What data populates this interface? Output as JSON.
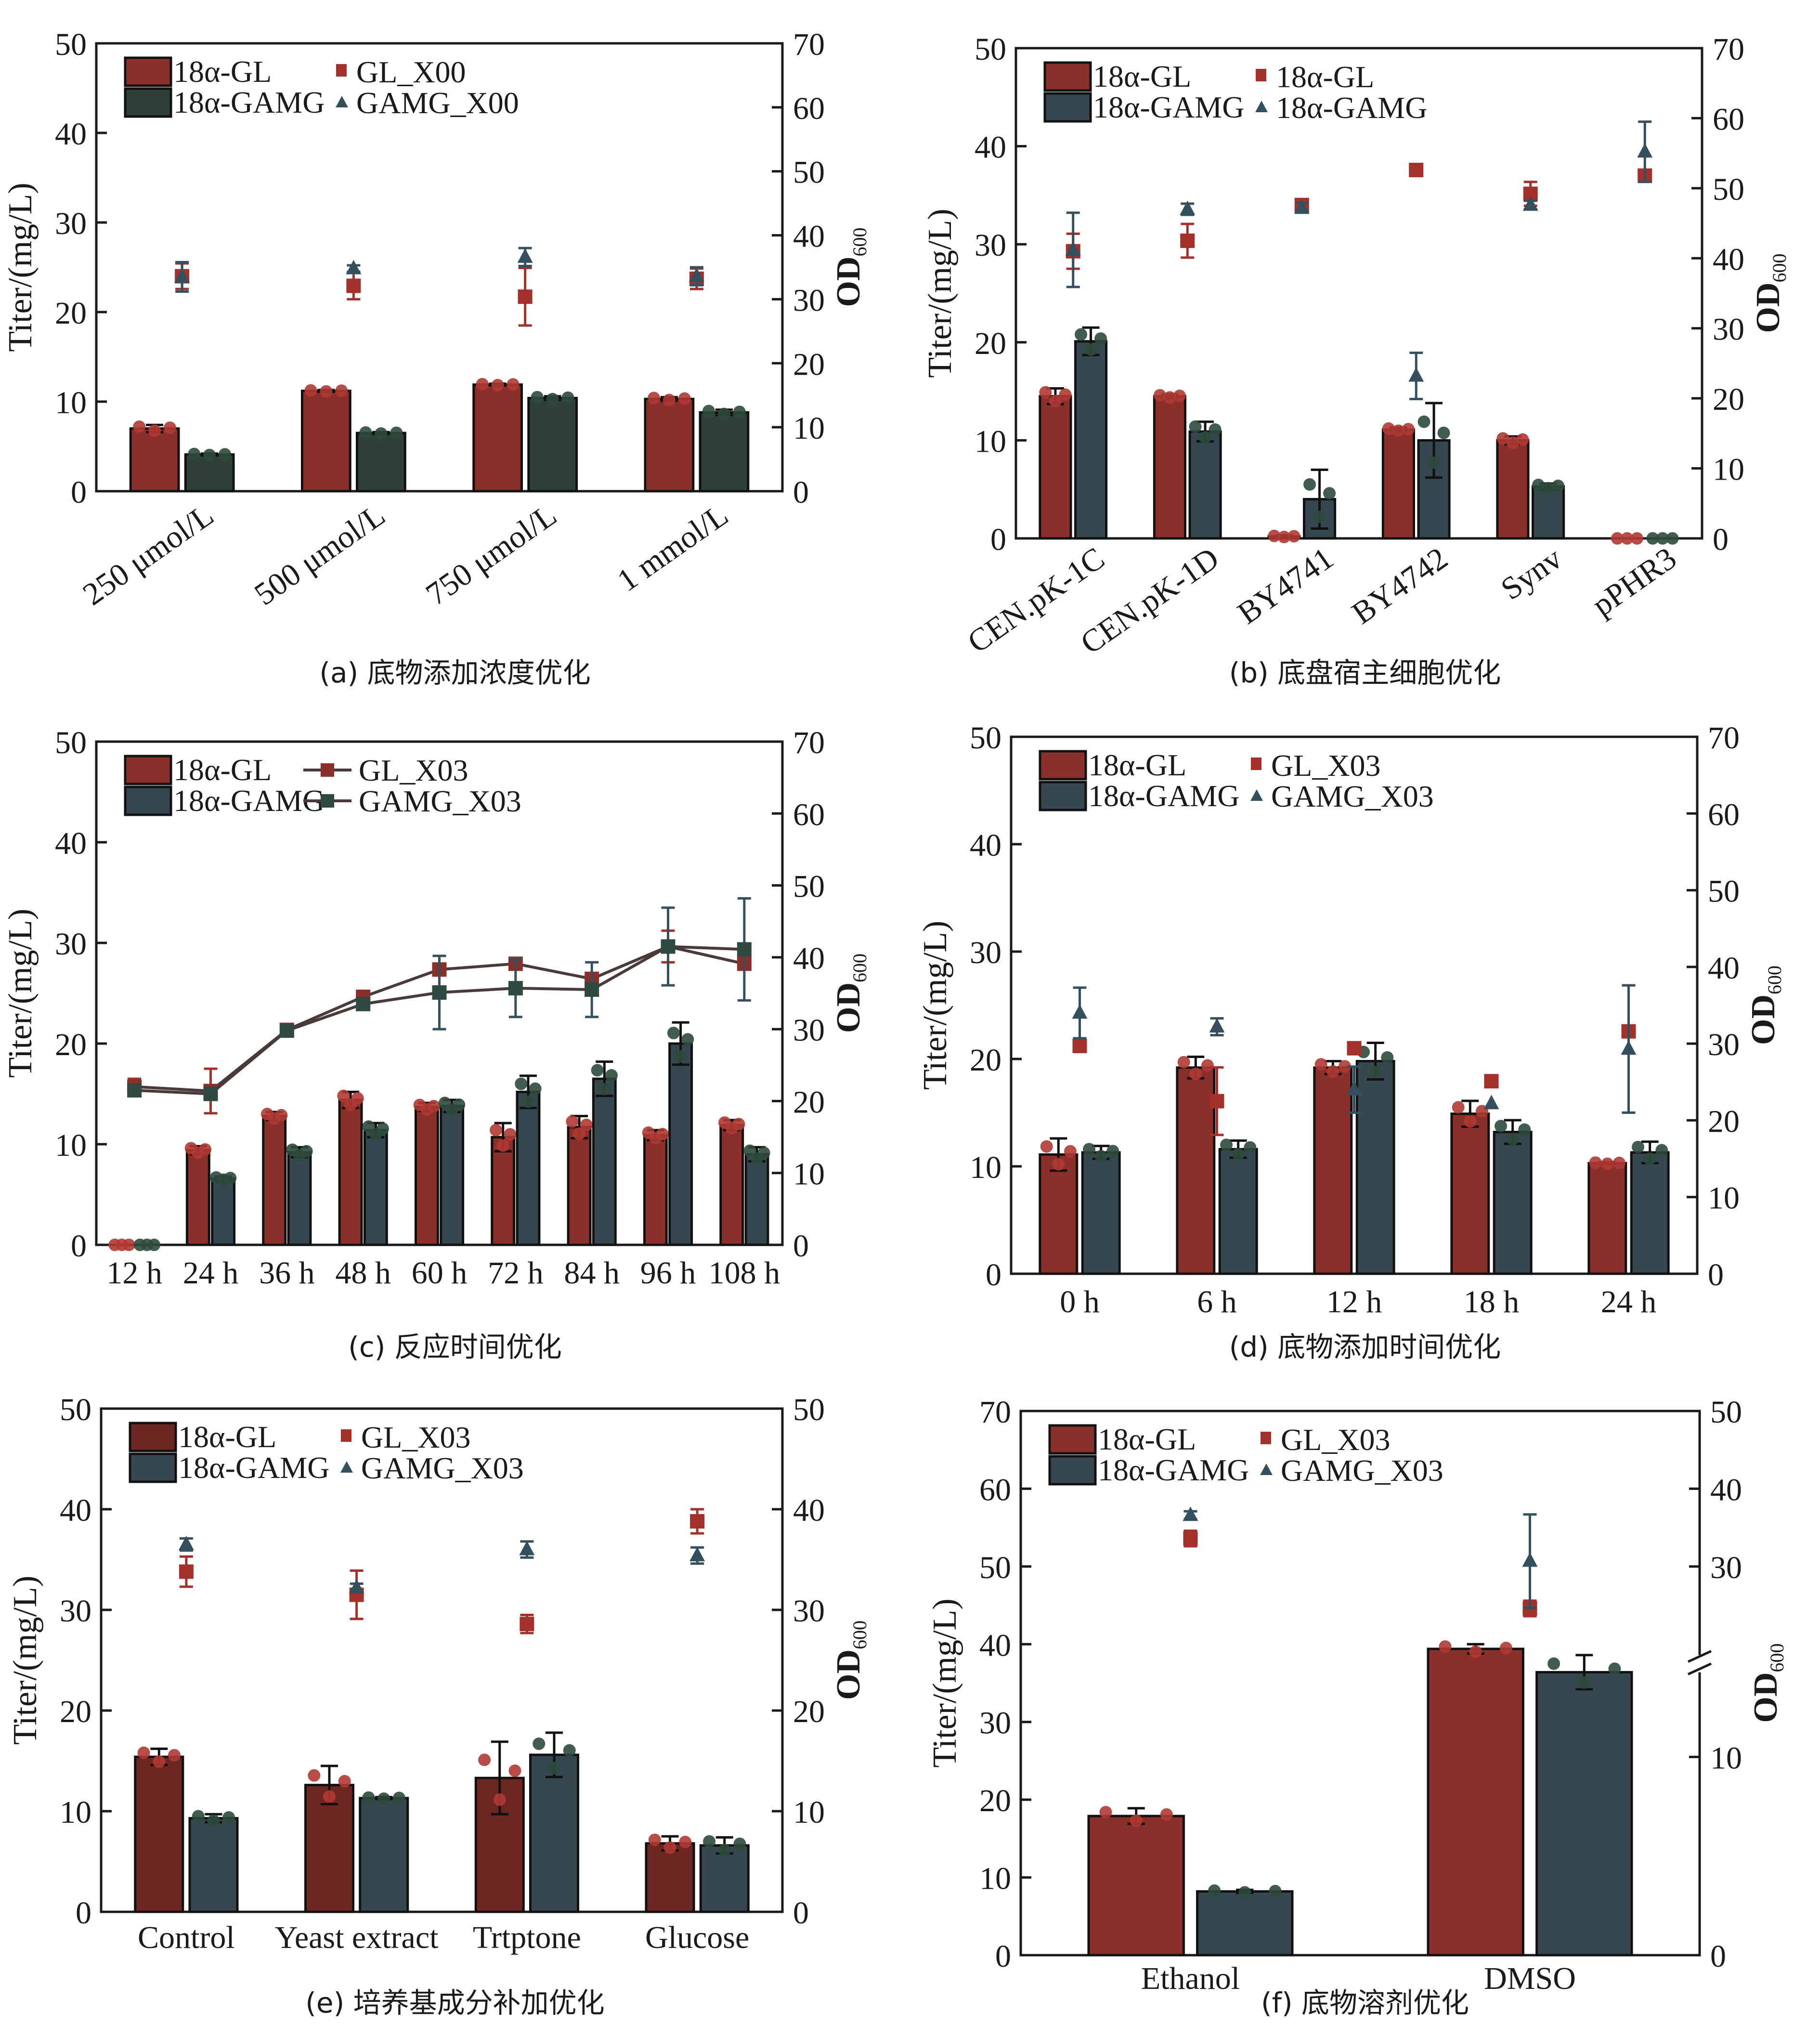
{
  "colors": {
    "gl_bar": "#8B2F2A",
    "gamg_bar_a": "#2F4038",
    "gamg_bar": "#37474F",
    "gl_point": "#A3302B",
    "gamg_point": "#34505E",
    "gl_dot": "#B03A34",
    "gamg_dot": "#2E4A3C",
    "axis": "#1a1a1a",
    "line": "#4a3a3a"
  },
  "chart_data": [
    {
      "id": "a",
      "type": "bar",
      "caption": "(a) 底物添加浓度优化",
      "categories": [
        "250 μmol/L",
        "500 μmol/L",
        "750 μmol/L",
        "1 mmol/L"
      ],
      "xlabel_rotated": true,
      "ylabel": "Titer/(mg/L)",
      "y2label": "OD",
      "y2label_sub": "600",
      "ylim": [
        0,
        50
      ],
      "yticks": [
        0,
        10,
        20,
        30,
        40,
        50
      ],
      "y2lim": [
        0,
        70
      ],
      "y2ticks": [
        0,
        10,
        20,
        30,
        40,
        50,
        60,
        70
      ],
      "gamg_bar_color": "gamg_bar_a",
      "legend": {
        "bars": [
          "18α-GL",
          "18α-GAMG"
        ],
        "points": [
          "GL_X00",
          "GAMG_X00"
        ],
        "point_style": "marker",
        "placement": "top-left"
      },
      "bars": [
        {
          "name": "18α-GL",
          "values": [
            7.0,
            11.2,
            11.9,
            10.3
          ],
          "err": [
            0.4,
            0.1,
            0.1,
            0.2
          ]
        },
        {
          "name": "18α-GAMG",
          "values": [
            4.1,
            6.5,
            10.4,
            8.8
          ],
          "err": [
            0.1,
            0.1,
            0.2,
            0.3
          ]
        }
      ],
      "points": [
        {
          "name": "GL_X00",
          "marker": "square",
          "values": [
            33.6,
            32.1,
            30.4,
            33.2
          ],
          "err": [
            2.0,
            2.1,
            4.5,
            1.6
          ]
        },
        {
          "name": "GAMG_X00",
          "marker": "triangle",
          "values": [
            33.5,
            34.8,
            36.6,
            33.6
          ],
          "err": [
            2.3,
            0.5,
            1.4,
            1.4
          ]
        }
      ]
    },
    {
      "id": "b",
      "type": "bar",
      "caption": "(b) 底盘宿主细胞优化",
      "categories": [
        "CEN.pK-1C",
        "CEN.pK-1D",
        "BY4741",
        "BY4742",
        "Synv",
        "pPHR3"
      ],
      "xlabel_rotated": true,
      "ylabel": "Titer/(mg/L)",
      "y2label": "OD",
      "y2label_sub": "600",
      "ylim": [
        0,
        50
      ],
      "yticks": [
        0,
        10,
        20,
        30,
        40,
        50
      ],
      "y2lim": [
        0,
        70
      ],
      "y2ticks": [
        0,
        10,
        20,
        30,
        40,
        50,
        60,
        70
      ],
      "gamg_bar_color": "gamg_bar",
      "legend": {
        "bars": [
          "18α-GL",
          "18α-GAMG"
        ],
        "points": [
          "18α-GL",
          "18α-GAMG"
        ],
        "point_style": "marker",
        "placement": "top-left"
      },
      "bars": [
        {
          "name": "18α-GL",
          "values": [
            14.5,
            14.5,
            0.2,
            11.1,
            10.0,
            0.0
          ],
          "err": [
            0.8,
            0.2,
            0.1,
            0.2,
            0.4,
            0.0
          ]
        },
        {
          "name": "18α-GAMG",
          "values": [
            20.1,
            10.9,
            4.0,
            10.0,
            5.3,
            0.0
          ],
          "err": [
            1.4,
            1.0,
            3.0,
            3.8,
            0.3,
            0.0
          ]
        }
      ],
      "points": [
        {
          "name": "18α-GL",
          "marker": "square",
          "values": [
            41.0,
            42.5,
            47.6,
            52.6,
            49.2,
            51.8
          ],
          "err": [
            2.5,
            2.4,
            0.5,
            0.8,
            1.7,
            0.6
          ]
        },
        {
          "name": "18α-GAMG",
          "marker": "triangle",
          "values": [
            41.2,
            47.0,
            47.2,
            23.2,
            47.6,
            55.2
          ],
          "err": [
            5.3,
            0.8,
            0.7,
            3.3,
            0.6,
            4.3
          ]
        }
      ]
    },
    {
      "id": "c",
      "type": "bar",
      "caption": "(c) 反应时间优化",
      "categories": [
        "12 h",
        "24 h",
        "36 h",
        "48 h",
        "60 h",
        "72 h",
        "84 h",
        "96 h",
        "108 h"
      ],
      "xlabel_rotated": false,
      "ylabel": "Titer/(mg/L)",
      "y2label": "OD",
      "y2label_sub": "600",
      "ylim": [
        0,
        50
      ],
      "yticks": [
        0,
        10,
        20,
        30,
        40,
        50
      ],
      "y2lim": [
        0,
        70
      ],
      "y2ticks": [
        0,
        10,
        20,
        30,
        40,
        50,
        60,
        70
      ],
      "gamg_bar_color": "gamg_bar",
      "legend": {
        "bars": [
          "18α-GL",
          "18α-GAMG"
        ],
        "points": [
          "GL_X03",
          "GAMG_X03"
        ],
        "point_style": "line",
        "placement": "top-left"
      },
      "bars": [
        {
          "name": "18α-GL",
          "values": [
            0.0,
            9.4,
            12.8,
            14.4,
            13.7,
            10.7,
            11.7,
            10.9,
            11.9
          ],
          "err": [
            0.0,
            0.4,
            0.4,
            0.8,
            0.4,
            1.4,
            1.1,
            0.5,
            0.5
          ]
        },
        {
          "name": "18α-GAMG",
          "values": [
            0.0,
            6.6,
            9.2,
            11.4,
            13.8,
            15.2,
            16.5,
            20.0,
            9.0
          ],
          "err": [
            0.0,
            0.2,
            0.5,
            0.7,
            0.6,
            1.6,
            1.7,
            2.1,
            0.7
          ]
        }
      ],
      "points": [
        {
          "name": "GL_X03",
          "marker": "square",
          "connected": true,
          "values": [
            22.0,
            21.4,
            29.9,
            34.5,
            38.3,
            39.1,
            37.0,
            41.5,
            39.1
          ],
          "err": [
            1.1,
            3.1,
            0.5,
            0.5,
            0.4,
            0.7,
            0.7,
            2.2,
            0.7
          ]
        },
        {
          "name": "GAMG_X03",
          "marker": "square",
          "connected": true,
          "values": [
            21.5,
            21.0,
            29.8,
            33.5,
            35.1,
            35.7,
            35.5,
            41.5,
            41.1
          ],
          "err": [
            0.5,
            0.8,
            0.4,
            0.8,
            5.1,
            4.0,
            3.8,
            5.4,
            7.1
          ]
        }
      ]
    },
    {
      "id": "d",
      "type": "bar",
      "caption": "(d) 底物添加时间优化",
      "categories": [
        "0 h",
        "6 h",
        "12 h",
        "18 h",
        "24 h"
      ],
      "xlabel_rotated": false,
      "ylabel": "Titer/(mg/L)",
      "y2label": "OD",
      "y2label_sub": "600",
      "ylim": [
        0,
        50
      ],
      "yticks": [
        0,
        10,
        20,
        30,
        40,
        50
      ],
      "y2lim": [
        0,
        70
      ],
      "y2ticks": [
        0,
        10,
        20,
        30,
        40,
        50,
        60,
        70
      ],
      "gamg_bar_color": "gamg_bar",
      "legend": {
        "bars": [
          "18α-GL",
          "18α-GAMG"
        ],
        "points": [
          "GL_X03",
          "GAMG_X03"
        ],
        "point_style": "marker",
        "placement": "top-left"
      },
      "bars": [
        {
          "name": "18α-GL",
          "values": [
            11.1,
            19.2,
            19.2,
            14.9,
            10.3
          ],
          "err": [
            1.5,
            1.0,
            0.6,
            1.2,
            0.1
          ]
        },
        {
          "name": "18α-GAMG",
          "values": [
            11.3,
            11.6,
            19.8,
            13.2,
            11.3
          ],
          "err": [
            0.6,
            0.8,
            1.7,
            1.1,
            1.0
          ]
        }
      ],
      "points": [
        {
          "name": "GL_X03",
          "marker": "square",
          "values": [
            29.7,
            22.5,
            29.4,
            25.1,
            31.6
          ],
          "err": [
            0.0,
            4.4,
            0.0,
            0.0,
            0.0
          ]
        },
        {
          "name": "GAMG_X03",
          "marker": "triangle",
          "values": [
            34.0,
            32.2,
            24.0,
            22.2,
            29.3
          ],
          "err": [
            3.3,
            1.1,
            3.0,
            0.0,
            8.3
          ]
        }
      ]
    },
    {
      "id": "e",
      "type": "bar",
      "caption": "(e) 培养基成分补加优化",
      "categories": [
        "Control",
        "Yeast extract",
        "Trtptone",
        "Glucose"
      ],
      "xlabel_rotated": false,
      "ylabel": "Titer/(mg/L)",
      "y2label": "OD",
      "y2label_sub": "600",
      "ylim": [
        0,
        50
      ],
      "yticks": [
        0,
        10,
        20,
        30,
        40,
        50
      ],
      "y2lim": [
        0,
        50
      ],
      "y2ticks": [
        0,
        10,
        20,
        30,
        40,
        50
      ],
      "gamg_bar_color": "gamg_bar",
      "gl_bar_color": "#6E2622",
      "legend": {
        "bars": [
          "18α-GL",
          "18α-GAMG"
        ],
        "points": [
          "GL_X03",
          "GAMG_X03"
        ],
        "point_style": "marker",
        "placement": "top-left"
      },
      "bars": [
        {
          "name": "18α-GL",
          "values": [
            15.4,
            12.6,
            13.3,
            6.8
          ],
          "err": [
            0.8,
            1.9,
            3.6,
            0.7
          ]
        },
        {
          "name": "18α-GAMG",
          "values": [
            9.3,
            11.3,
            15.6,
            6.6
          ],
          "err": [
            0.4,
            0.1,
            2.2,
            0.8
          ]
        }
      ],
      "points": [
        {
          "name": "GL_X03",
          "marker": "square",
          "values": [
            33.8,
            31.5,
            28.6,
            38.8
          ],
          "err": [
            1.5,
            2.4,
            0.9,
            1.2
          ]
        },
        {
          "name": "GAMG_X03",
          "marker": "triangle",
          "values": [
            36.5,
            32.2,
            36.0,
            35.4
          ],
          "err": [
            0.6,
            0.4,
            0.8,
            0.8
          ]
        }
      ]
    },
    {
      "id": "f",
      "type": "bar",
      "caption": "(f) 底物溶剂优化",
      "categories": [
        "Ethanol",
        "DMSO"
      ],
      "xlabel_rotated": false,
      "ylabel": "Titer/(mg/L)",
      "y2label": "OD",
      "y2label_sub": "600",
      "ylim": [
        0,
        70
      ],
      "yticks": [
        0,
        10,
        20,
        30,
        40,
        50,
        60,
        70
      ],
      "y2lim": [
        0,
        50
      ],
      "y2ticks": [
        0,
        10,
        30,
        40,
        50
      ],
      "y2_break": [
        15,
        25
      ],
      "gamg_bar_color": "gamg_bar",
      "legend": {
        "bars": [
          "18α-GL",
          "18α-GAMG"
        ],
        "points": [
          "GL_X03",
          "GAMG_X03"
        ],
        "point_style": "marker",
        "placement": "top-left"
      },
      "bars": [
        {
          "name": "18α-GL",
          "values": [
            17.9,
            39.4
          ],
          "err": [
            1.0,
            0.6
          ]
        },
        {
          "name": "18α-GAMG",
          "values": [
            8.2,
            36.4
          ],
          "err": [
            0.2,
            2.2
          ]
        }
      ],
      "points": [
        {
          "name": "GL_X03",
          "marker": "square",
          "values": [
            33.6,
            24.6
          ],
          "err": [
            1.0,
            1.0
          ]
        },
        {
          "name": "GAMG_X03",
          "marker": "triangle",
          "values": [
            36.6,
            30.7
          ],
          "err": [
            0.5,
            6.0
          ]
        }
      ]
    }
  ]
}
